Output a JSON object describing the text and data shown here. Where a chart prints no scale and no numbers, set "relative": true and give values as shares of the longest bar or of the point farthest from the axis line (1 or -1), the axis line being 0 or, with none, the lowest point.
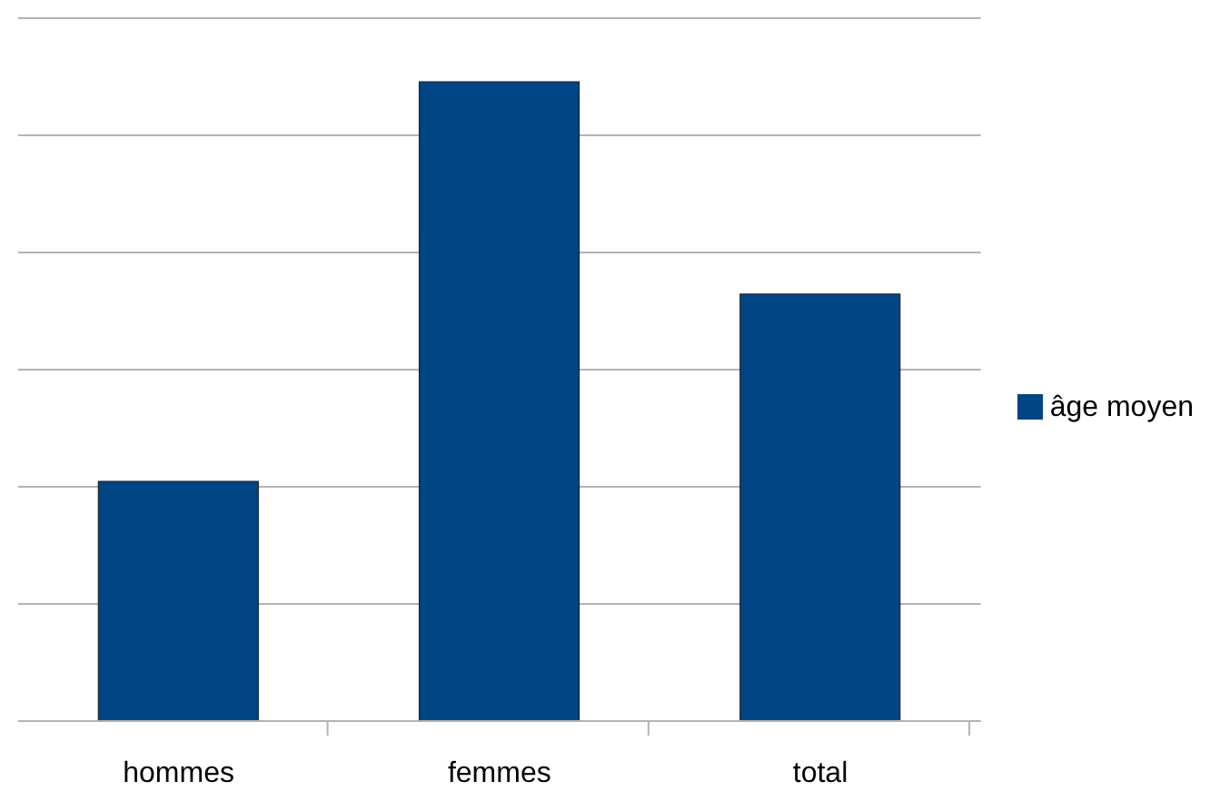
{
  "chart_data": {
    "type": "bar",
    "categories": [
      "hommes",
      "femmes",
      "total"
    ],
    "relative": true,
    "grid": "y",
    "legend": "right",
    "series": [
      {
        "name": "âge moyen",
        "color": "#004586",
        "values": [
          0.375,
          1,
          0.668
        ]
      }
    ]
  }
}
